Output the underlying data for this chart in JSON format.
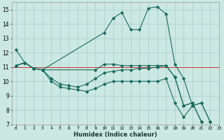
{
  "xlabel": "Humidex (Indice chaleur)",
  "xlim": [
    -0.5,
    23
  ],
  "ylim": [
    7,
    15.5
  ],
  "yticks": [
    7,
    8,
    9,
    10,
    11,
    12,
    13,
    14,
    15
  ],
  "xticks": [
    0,
    1,
    2,
    3,
    4,
    5,
    6,
    7,
    8,
    9,
    10,
    11,
    12,
    13,
    14,
    15,
    16,
    17,
    18,
    19,
    20,
    21,
    22,
    23
  ],
  "bg_color": "#cbe8e2",
  "grid_color": "#aacccc",
  "line_color": "#1a6b5e",
  "red_line_y": 11.0,
  "line_high_x": [
    0,
    1,
    2,
    3,
    10,
    11,
    12,
    13,
    14,
    15,
    16,
    17,
    18,
    19,
    20,
    21,
    22
  ],
  "line_high_y": [
    11.1,
    11.3,
    10.9,
    10.8,
    13.4,
    14.4,
    14.8,
    13.6,
    13.6,
    15.1,
    15.2,
    14.7,
    11.2,
    10.2,
    8.3,
    8.5,
    7.2
  ],
  "line_mid1_x": [
    0,
    1,
    2,
    3,
    9,
    10,
    11,
    12,
    13,
    14,
    15,
    16,
    17,
    18,
    19,
    20,
    21,
    22
  ],
  "line_mid1_y": [
    11.1,
    11.3,
    10.9,
    10.8,
    10.8,
    11.2,
    11.2,
    11.1,
    11.1,
    11.1,
    11.1,
    11.1,
    11.1,
    10.3,
    8.3,
    8.5,
    7.2,
    null
  ],
  "line_mid2_x": [
    0,
    1,
    2,
    3,
    4,
    5,
    6,
    7,
    8,
    9,
    10,
    11,
    12,
    13,
    14,
    15,
    16,
    17,
    18,
    19,
    20,
    21,
    22
  ],
  "line_mid2_y": [
    11.1,
    11.3,
    10.9,
    10.8,
    10.2,
    9.8,
    9.7,
    9.6,
    9.8,
    10.2,
    10.6,
    10.7,
    10.8,
    10.8,
    10.9,
    10.9,
    11.0,
    11.1,
    10.3,
    8.3,
    8.5,
    7.2,
    null
  ],
  "line_low_x": [
    0,
    1,
    2,
    3,
    4,
    5,
    6,
    7,
    8,
    9,
    10,
    11,
    12,
    13,
    14,
    15,
    16,
    17,
    18,
    19,
    20,
    21,
    22
  ],
  "line_low_y": [
    12.2,
    11.3,
    10.9,
    10.8,
    10.0,
    9.6,
    9.5,
    9.4,
    9.3,
    9.5,
    9.8,
    10.0,
    10.0,
    10.0,
    10.0,
    10.0,
    10.0,
    10.2,
    8.5,
    7.5,
    8.3,
    8.5,
    7.2
  ]
}
